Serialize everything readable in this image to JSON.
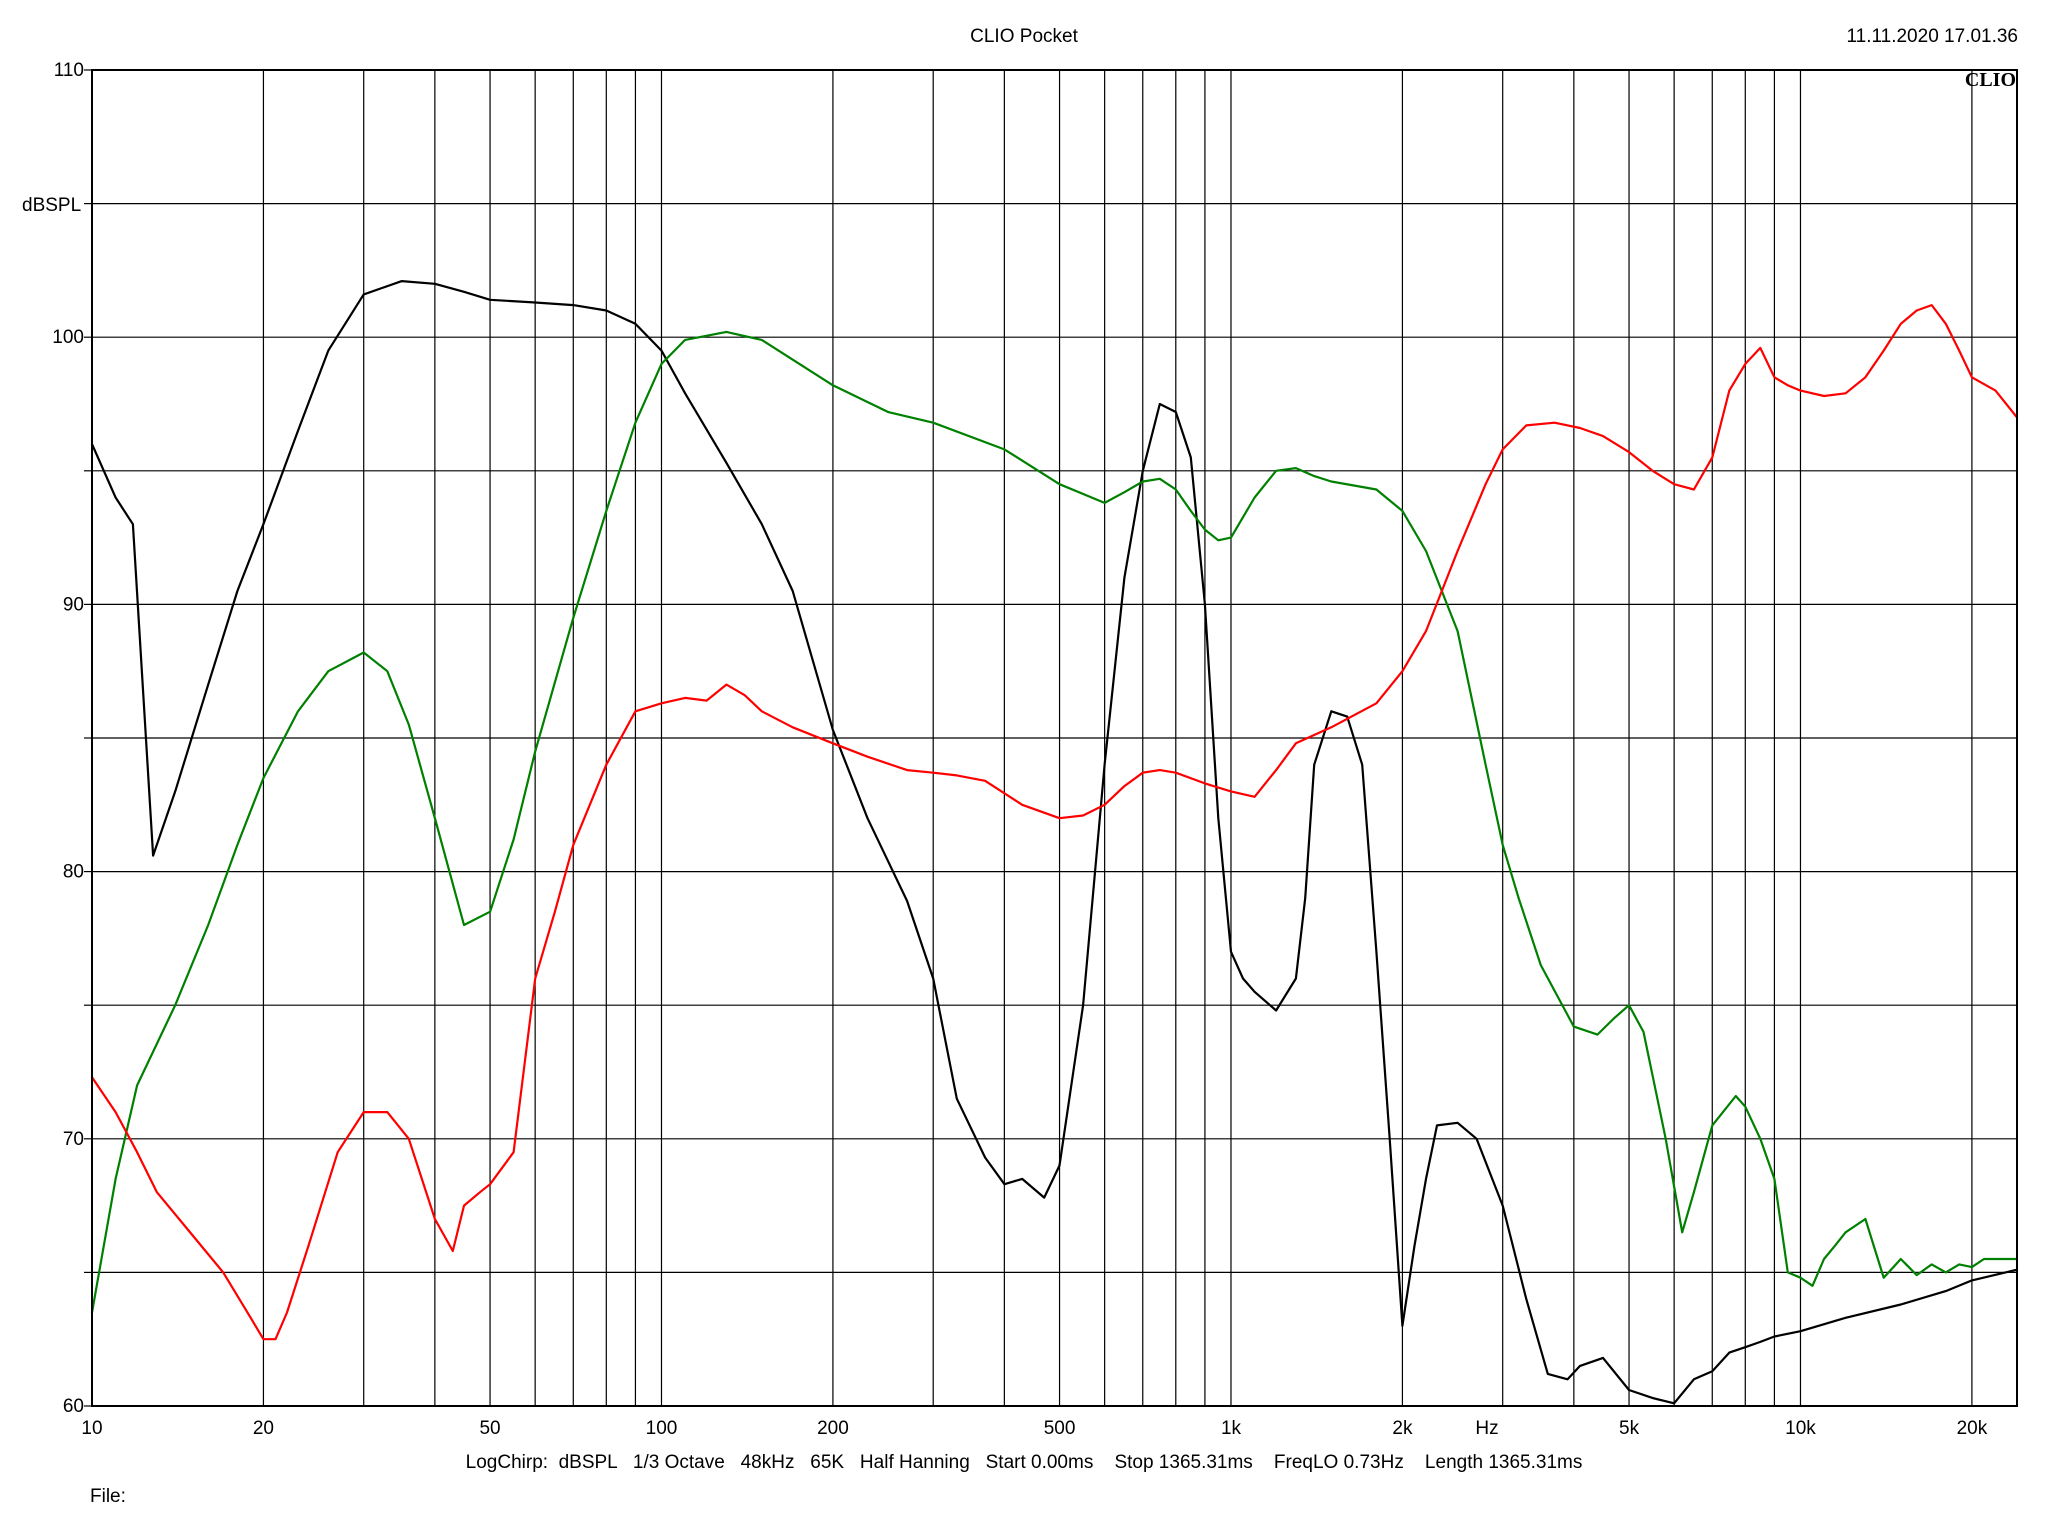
{
  "header": {
    "title": "CLIO Pocket",
    "timestamp": "11.11.2020 17.01.36",
    "logo": "CLIO"
  },
  "footer": {
    "settings": "LogChirp:  dBSPL   1/3 Octave   48kHz   65K   Half Hanning   Start 0.00ms    Stop 1365.31ms    FreqLO 0.73Hz    Length 1365.31ms",
    "file_label": "File:"
  },
  "chart_data": {
    "type": "line",
    "title": "",
    "xlabel": "Hz",
    "ylabel": "dBSPL",
    "x_scale": "log",
    "xlim": [
      10,
      24000
    ],
    "ylim": [
      60,
      110
    ],
    "grid": true,
    "x_tick_labels": [
      {
        "value": 10,
        "label": "10"
      },
      {
        "value": 20,
        "label": "20"
      },
      {
        "value": 50,
        "label": "50"
      },
      {
        "value": 100,
        "label": "100"
      },
      {
        "value": 200,
        "label": "200"
      },
      {
        "value": 500,
        "label": "500"
      },
      {
        "value": 1000,
        "label": "1k"
      },
      {
        "value": 2000,
        "label": "2k"
      },
      {
        "value": 5000,
        "label": "5k"
      },
      {
        "value": 10000,
        "label": "10k"
      },
      {
        "value": 20000,
        "label": "20k"
      }
    ],
    "y_tick_labels": [
      {
        "value": 60,
        "label": "60"
      },
      {
        "value": 70,
        "label": "70"
      },
      {
        "value": 80,
        "label": "80"
      },
      {
        "value": 90,
        "label": "90"
      },
      {
        "value": 100,
        "label": "100"
      },
      {
        "value": 110,
        "label": "110"
      }
    ],
    "series": [
      {
        "color": "#000000",
        "x": [
          10,
          11,
          11.8,
          12.8,
          14,
          16,
          18,
          20,
          23,
          26,
          30,
          35,
          40,
          45,
          50,
          60,
          70,
          80,
          90,
          100,
          110,
          130,
          150,
          170,
          200,
          230,
          270,
          300,
          330,
          370,
          400,
          430,
          470,
          500,
          550,
          600,
          650,
          700,
          750,
          800,
          850,
          900,
          950,
          1000,
          1050,
          1100,
          1200,
          1300,
          1350,
          1400,
          1500,
          1600,
          1700,
          1800,
          1900,
          2000,
          2100,
          2200,
          2300,
          2500,
          2700,
          3000,
          3300,
          3600,
          3900,
          4100,
          4500,
          5000,
          5500,
          6000,
          6500,
          7000,
          7500,
          8000,
          8500,
          9000,
          10000,
          12000,
          15000,
          18000,
          20000,
          24000
        ],
        "values": [
          96,
          94,
          93,
          80.6,
          83,
          87,
          90.5,
          93,
          96.5,
          99.5,
          101.6,
          102.1,
          102,
          101.7,
          101.4,
          101.3,
          101.2,
          101,
          100.5,
          99.5,
          97.9,
          95.3,
          93,
          90.5,
          85.3,
          82,
          78.9,
          76,
          71.5,
          69.3,
          68.3,
          68.5,
          67.8,
          69,
          75,
          84,
          91,
          95,
          97.5,
          97.2,
          95.5,
          90,
          82,
          77,
          76,
          75.5,
          74.8,
          76,
          79,
          84,
          86,
          85.8,
          84,
          77,
          70,
          63,
          66,
          68.5,
          70.5,
          70.6,
          70,
          67.5,
          64,
          61.2,
          61,
          61.5,
          61.8,
          60.6,
          60.3,
          60.1,
          61,
          61.3,
          62,
          62.2,
          62.4,
          62.6,
          62.8,
          63.3,
          63.8,
          64.3,
          64.7,
          65.1
        ]
      },
      {
        "color": "#008000",
        "x": [
          10,
          11,
          12,
          14,
          16,
          18,
          20,
          23,
          26,
          30,
          33,
          36,
          40,
          45,
          50,
          55,
          60,
          70,
          80,
          90,
          100,
          110,
          130,
          150,
          200,
          250,
          300,
          400,
          500,
          600,
          650,
          700,
          750,
          800,
          850,
          900,
          950,
          1000,
          1100,
          1200,
          1300,
          1400,
          1500,
          1800,
          2000,
          2200,
          2500,
          2800,
          3000,
          3200,
          3500,
          4000,
          4400,
          4700,
          5000,
          5300,
          5800,
          6200,
          6500,
          7000,
          7700,
          8000,
          8500,
          9000,
          9500,
          10000,
          10500,
          11000,
          11500,
          12000,
          13000,
          14000,
          15000,
          16000,
          17000,
          18000,
          19000,
          20000,
          21000,
          22000,
          24000
        ],
        "values": [
          63.5,
          68.5,
          72,
          75,
          78,
          81,
          83.5,
          86,
          87.5,
          88.2,
          87.5,
          85.5,
          82,
          78,
          78.5,
          81.2,
          84.5,
          89.5,
          93.5,
          96.8,
          99,
          99.9,
          100.2,
          99.9,
          98.2,
          97.2,
          96.8,
          95.8,
          94.5,
          93.8,
          94.2,
          94.6,
          94.7,
          94.3,
          93.5,
          92.8,
          92.4,
          92.5,
          94,
          95,
          95.1,
          94.8,
          94.6,
          94.3,
          93.5,
          92,
          89,
          84,
          81,
          79,
          76.5,
          74.2,
          73.9,
          74.5,
          75,
          74,
          70,
          66.5,
          68,
          70.5,
          71.6,
          71.2,
          70,
          68.5,
          65,
          64.8,
          64.5,
          65.5,
          66,
          66.5,
          67,
          64.8,
          65.5,
          64.9,
          65.3,
          65,
          65.3,
          65.2,
          65.5,
          65.5,
          65.5
        ]
      },
      {
        "color": "#ff0000",
        "x": [
          10,
          11,
          12,
          13,
          15,
          17,
          19,
          20,
          21,
          22,
          24,
          27,
          30,
          33,
          36,
          40,
          43,
          45,
          48,
          50,
          55,
          60,
          65,
          70,
          80,
          90,
          100,
          110,
          120,
          130,
          140,
          150,
          170,
          200,
          230,
          270,
          300,
          330,
          370,
          430,
          500,
          550,
          600,
          650,
          700,
          750,
          800,
          900,
          1000,
          1100,
          1200,
          1300,
          1500,
          1800,
          2000,
          2200,
          2500,
          2800,
          3000,
          3300,
          3700,
          4100,
          4500,
          5000,
          5500,
          6000,
          6500,
          7000,
          7500,
          8000,
          8500,
          9000,
          9500,
          10000,
          11000,
          12000,
          13000,
          14000,
          15000,
          16000,
          17000,
          18000,
          19000,
          20000,
          22000,
          24000
        ],
        "values": [
          72.3,
          71,
          69.5,
          68,
          66.4,
          65,
          63.3,
          62.5,
          62.5,
          63.5,
          66,
          69.5,
          71,
          71,
          70,
          67,
          65.8,
          67.5,
          68,
          68.3,
          69.5,
          76,
          78.5,
          81,
          84,
          86,
          86.3,
          86.5,
          86.4,
          87,
          86.6,
          86,
          85.4,
          84.8,
          84.3,
          83.8,
          83.7,
          83.6,
          83.4,
          82.5,
          82,
          82.1,
          82.5,
          83.2,
          83.7,
          83.8,
          83.7,
          83.3,
          83,
          82.8,
          83.8,
          84.8,
          85.4,
          86.3,
          87.5,
          89,
          92,
          94.5,
          95.8,
          96.7,
          96.8,
          96.6,
          96.3,
          95.7,
          95,
          94.5,
          94.3,
          95.5,
          98,
          99,
          99.6,
          98.5,
          98.2,
          98,
          97.8,
          97.9,
          98.5,
          99.5,
          100.5,
          101,
          101.2,
          100.5,
          99.5,
          98.5,
          98,
          97
        ]
      }
    ]
  }
}
